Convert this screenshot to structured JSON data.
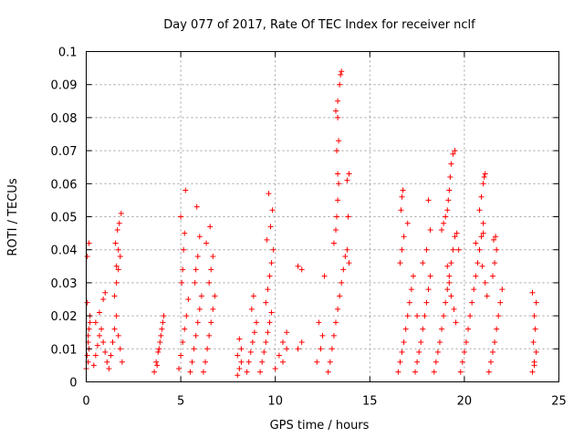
{
  "chart_data": {
    "type": "scatter",
    "title": "Day 077 of 2017, Rate Of TEC Index for receiver nclf",
    "xlabel": "GPS time / hours",
    "ylabel": "ROTI / TECUs",
    "xlim": [
      0,
      25
    ],
    "ylim": [
      0,
      0.1
    ],
    "x_ticks": [
      0,
      5,
      10,
      15,
      20,
      25
    ],
    "x_tick_labels": [
      "0",
      "5",
      "10",
      "15",
      "20",
      "25"
    ],
    "y_ticks": [
      0,
      0.01,
      0.02,
      0.03,
      0.04,
      0.05,
      0.06,
      0.07,
      0.08,
      0.09,
      0.1
    ],
    "y_tick_labels": [
      "0",
      "0.01",
      "0.02",
      "0.03",
      "0.04",
      "0.05",
      "0.06",
      "0.07",
      "0.08",
      "0.09",
      "0.1"
    ],
    "grid": true,
    "marker": "plus",
    "series_color": "#ff0000",
    "series": [
      {
        "name": "ROTI",
        "x": [
          0.0,
          0.05,
          0.1,
          0.15,
          0.2,
          0.05,
          0.1,
          0.15,
          0.1,
          0.2,
          0.05,
          0.15,
          0.4,
          0.5,
          0.6,
          0.7,
          0.8,
          0.9,
          1.0,
          1.1,
          0.5,
          0.7,
          0.9,
          1.0,
          1.2,
          1.3,
          1.4,
          1.5,
          1.6,
          1.7,
          1.8,
          1.9,
          1.5,
          1.6,
          1.7,
          1.8,
          1.55,
          1.65,
          1.75,
          1.85,
          1.6,
          1.7,
          3.6,
          3.7,
          3.8,
          3.9,
          4.0,
          4.1,
          3.75,
          3.85,
          3.95,
          4.05,
          4.9,
          5.0,
          5.1,
          5.2,
          5.3,
          5.4,
          5.05,
          5.1,
          5.15,
          5.2,
          5.0,
          5.25,
          5.5,
          5.6,
          5.7,
          5.8,
          5.9,
          6.0,
          6.1,
          5.75,
          5.8,
          5.9,
          6.0,
          5.85,
          6.2,
          6.3,
          6.4,
          6.5,
          6.6,
          6.7,
          6.8,
          6.5,
          6.6,
          6.7,
          6.35,
          6.55,
          8.0,
          8.1,
          8.2,
          8.0,
          8.2,
          8.1,
          8.5,
          8.6,
          8.7,
          8.8,
          8.9,
          9.0,
          8.75,
          8.85,
          9.2,
          9.3,
          9.4,
          9.5,
          9.6,
          9.7,
          9.8,
          9.5,
          9.6,
          9.7,
          9.8,
          9.9,
          9.55,
          9.75,
          9.85,
          9.65,
          10.0,
          10.2,
          10.4,
          10.6,
          10.4,
          10.6,
          11.2,
          11.4,
          11.2,
          11.4,
          12.2,
          12.4,
          12.5,
          12.3,
          12.6,
          12.8,
          12.9,
          13.0,
          13.1,
          13.2,
          13.3,
          13.4,
          13.5,
          13.6,
          13.7,
          13.8,
          13.9,
          13.1,
          13.2,
          13.25,
          13.3,
          13.35,
          13.3,
          13.25,
          13.35,
          13.3,
          13.2,
          13.3,
          13.4,
          13.45,
          13.5,
          13.8,
          13.9,
          13.85,
          16.5,
          16.6,
          16.7,
          16.8,
          16.9,
          17.0,
          17.1,
          17.2,
          17.3,
          16.6,
          16.7,
          16.8,
          17.0,
          16.65,
          16.7,
          16.75,
          17.4,
          17.5,
          17.6,
          17.7,
          17.8,
          17.9,
          18.0,
          18.1,
          18.2,
          17.8,
          18.0,
          18.2,
          18.1,
          17.5,
          18.4,
          18.5,
          18.6,
          18.7,
          18.8,
          18.9,
          19.0,
          19.1,
          19.2,
          19.3,
          19.4,
          19.5,
          18.8,
          18.9,
          19.0,
          19.1,
          19.15,
          19.2,
          19.25,
          19.3,
          19.4,
          19.5,
          19.6,
          19.7,
          19.1,
          19.2,
          19.3,
          19.45,
          19.55,
          19.8,
          19.9,
          20.0,
          20.1,
          20.2,
          20.3,
          20.4,
          20.5,
          20.6,
          20.7,
          20.8,
          20.9,
          21.0,
          21.1,
          21.2,
          20.6,
          20.8,
          20.9,
          21.0,
          21.05,
          21.1,
          20.95,
          21.0,
          21.3,
          21.4,
          21.5,
          21.6,
          21.7,
          21.8,
          21.9,
          22.0,
          21.5,
          21.6,
          21.7,
          21.55,
          21.65,
          23.6,
          23.7,
          23.8,
          23.65,
          23.75,
          23.7,
          23.8,
          23.6,
          23.7
        ],
        "y": [
          0.004,
          0.008,
          0.012,
          0.016,
          0.02,
          0.024,
          0.006,
          0.01,
          0.014,
          0.018,
          0.038,
          0.042,
          0.005,
          0.008,
          0.011,
          0.014,
          0.016,
          0.012,
          0.009,
          0.006,
          0.018,
          0.021,
          0.025,
          0.027,
          0.004,
          0.008,
          0.012,
          0.016,
          0.02,
          0.014,
          0.01,
          0.006,
          0.026,
          0.03,
          0.034,
          0.038,
          0.042,
          0.046,
          0.048,
          0.051,
          0.035,
          0.04,
          0.003,
          0.006,
          0.009,
          0.012,
          0.016,
          0.02,
          0.005,
          0.01,
          0.014,
          0.018,
          0.004,
          0.008,
          0.012,
          0.016,
          0.02,
          0.025,
          0.03,
          0.034,
          0.04,
          0.045,
          0.05,
          0.058,
          0.003,
          0.006,
          0.01,
          0.014,
          0.018,
          0.022,
          0.026,
          0.03,
          0.034,
          0.038,
          0.044,
          0.053,
          0.003,
          0.006,
          0.01,
          0.014,
          0.018,
          0.022,
          0.026,
          0.03,
          0.034,
          0.038,
          0.042,
          0.047,
          0.002,
          0.004,
          0.006,
          0.008,
          0.01,
          0.013,
          0.003,
          0.006,
          0.009,
          0.012,
          0.015,
          0.018,
          0.022,
          0.026,
          0.003,
          0.006,
          0.009,
          0.012,
          0.015,
          0.018,
          0.021,
          0.024,
          0.028,
          0.032,
          0.036,
          0.04,
          0.043,
          0.047,
          0.052,
          0.057,
          0.004,
          0.008,
          0.006,
          0.01,
          0.012,
          0.015,
          0.035,
          0.034,
          0.01,
          0.012,
          0.006,
          0.01,
          0.014,
          0.018,
          0.032,
          0.003,
          0.006,
          0.01,
          0.014,
          0.018,
          0.022,
          0.026,
          0.03,
          0.034,
          0.038,
          0.04,
          0.036,
          0.042,
          0.046,
          0.05,
          0.055,
          0.06,
          0.063,
          0.07,
          0.073,
          0.08,
          0.082,
          0.085,
          0.09,
          0.093,
          0.094,
          0.061,
          0.063,
          0.05,
          0.003,
          0.006,
          0.009,
          0.012,
          0.016,
          0.02,
          0.024,
          0.028,
          0.032,
          0.036,
          0.04,
          0.044,
          0.048,
          0.052,
          0.056,
          0.058,
          0.003,
          0.006,
          0.009,
          0.012,
          0.016,
          0.02,
          0.024,
          0.028,
          0.032,
          0.036,
          0.04,
          0.046,
          0.055,
          0.02,
          0.003,
          0.006,
          0.009,
          0.012,
          0.016,
          0.02,
          0.024,
          0.028,
          0.032,
          0.036,
          0.04,
          0.044,
          0.046,
          0.048,
          0.05,
          0.052,
          0.055,
          0.058,
          0.062,
          0.066,
          0.069,
          0.07,
          0.045,
          0.04,
          0.035,
          0.03,
          0.026,
          0.022,
          0.018,
          0.003,
          0.006,
          0.009,
          0.012,
          0.016,
          0.02,
          0.024,
          0.028,
          0.032,
          0.036,
          0.04,
          0.044,
          0.048,
          0.03,
          0.026,
          0.042,
          0.052,
          0.056,
          0.06,
          0.062,
          0.063,
          0.035,
          0.045,
          0.003,
          0.006,
          0.009,
          0.012,
          0.016,
          0.02,
          0.024,
          0.028,
          0.032,
          0.036,
          0.04,
          0.043,
          0.044,
          0.003,
          0.006,
          0.009,
          0.012,
          0.016,
          0.02,
          0.024,
          0.027,
          0.005
        ]
      }
    ]
  }
}
